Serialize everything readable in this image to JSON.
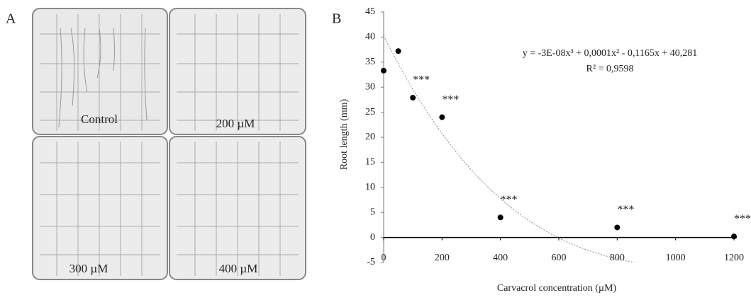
{
  "photo_panel": {
    "label": "A",
    "plates": [
      "Control",
      "200 µM",
      "300 µM",
      "400 µM"
    ]
  },
  "chart_data": {
    "type": "scatter",
    "panel_label": "B",
    "x_label": "Carvacrol concentration (µM)",
    "y_label": "Root length (mm)",
    "x": [
      0,
      50,
      100,
      200,
      400,
      800,
      1200
    ],
    "values": [
      33.3,
      37.2,
      27.9,
      24,
      4,
      2,
      0.2
    ],
    "value_annotations": [
      null,
      null,
      "***",
      "***",
      "***",
      "***",
      "***"
    ],
    "color": "#000000",
    "xlim": [
      0,
      1200
    ],
    "xticks": [
      0,
      200,
      400,
      600,
      800,
      1000,
      1200
    ],
    "ylim": [
      -5,
      45
    ],
    "yticks": [
      -5,
      0,
      5,
      10,
      15,
      20,
      25,
      30,
      35,
      40,
      45
    ],
    "trendline": {
      "equation": "y = -3E-08x³ + 0,0001x² - 0,1165x + 40,281",
      "r2": "R² = 0,9598",
      "coefficients": [
        -3e-08,
        0.0001,
        -0.1165,
        40.281
      ],
      "x_end": 1080
    }
  }
}
